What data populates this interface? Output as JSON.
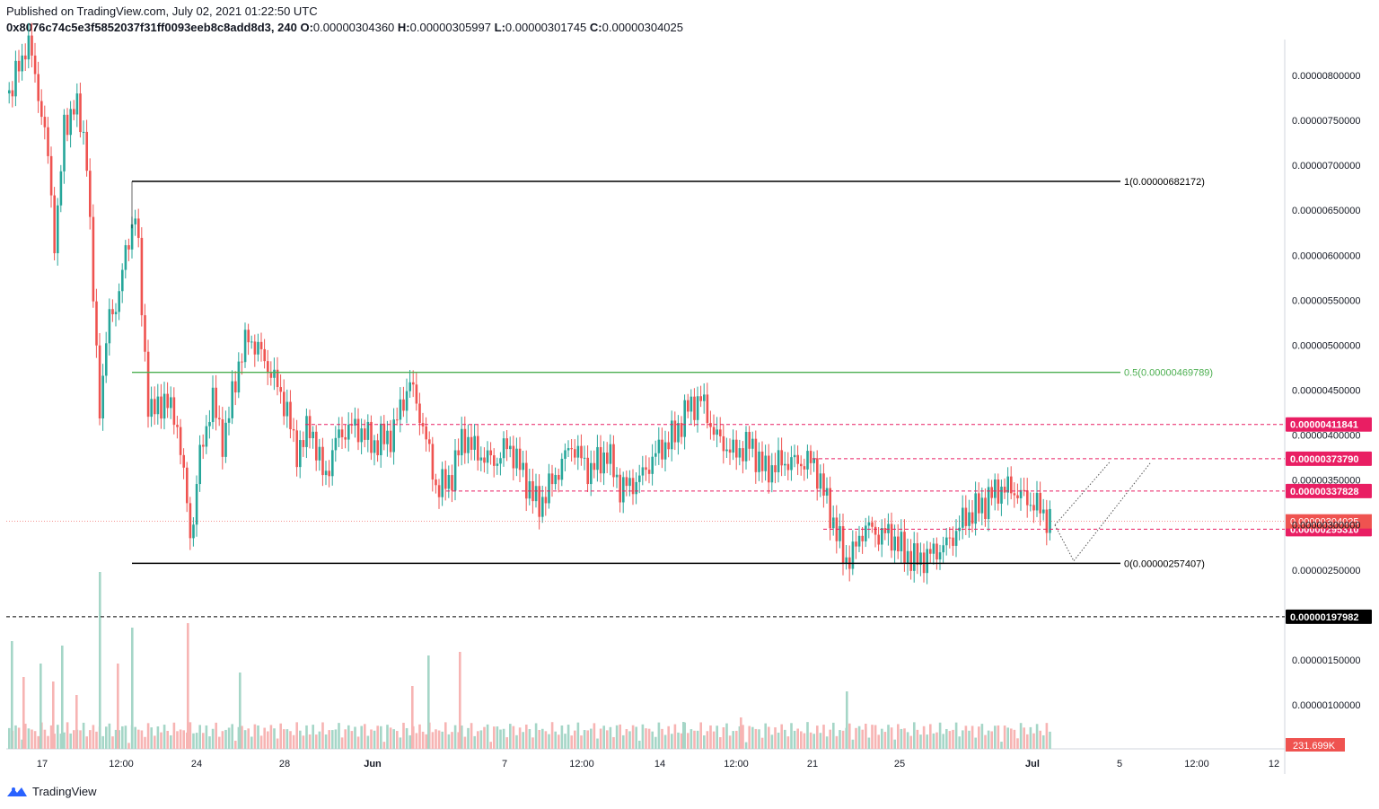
{
  "header": {
    "published": "Published on TradingView.com, July 02, 2021 01:22:50 UTC",
    "symbol": "0x8076c74c5e3f5852037f31ff0093eeb8c8add8d3, 240",
    "o_label": "O:",
    "o_value": "0.00000304360",
    "h_label": "H:",
    "h_value": "0.00000305997",
    "l_label": "L:",
    "l_value": "0.00000301745",
    "c_label": "C:",
    "c_value": "0.00000304025"
  },
  "footer": {
    "brand": "TradingView"
  },
  "colors": {
    "up": "#26a69a",
    "down": "#ef5350",
    "fib0": "#000000",
    "fib05": "#4caf50",
    "level": "#e91e63",
    "support": "#000000"
  },
  "chart_data": {
    "type": "candlestick",
    "price_axis": {
      "ticks": [
        "0.00000800000",
        "0.00000750000",
        "0.00000700000",
        "0.00000650000",
        "0.00000600000",
        "0.00000550000",
        "0.00000500000",
        "0.00000450000",
        "0.00000400000",
        "0.00000350000",
        "0.00000300000",
        "0.00000250000",
        "0.00000150000",
        "0.00000100000"
      ],
      "range": [
        9.2e-07,
        8.4e-06
      ]
    },
    "time_axis": {
      "ticks": [
        "17",
        "12:00",
        "24",
        "28",
        "Jun",
        "7",
        "12:00",
        "14",
        "12:00",
        "21",
        "25",
        "Jul",
        "5",
        "12:00",
        "12"
      ]
    },
    "fib_retracement": [
      {
        "label": "1(0.00000682172)",
        "value": 6.82172e-06
      },
      {
        "label": "0.5(0.00000469789)",
        "value": 4.69789e-06
      },
      {
        "label": "0(0.00000257407)",
        "value": 2.57407e-06
      }
    ],
    "horizontal_levels": [
      {
        "label": "0.00000411841",
        "value": 4.11841e-06,
        "style": "dashed"
      },
      {
        "label": "0.00000373790",
        "value": 3.7379e-06,
        "style": "dashed"
      },
      {
        "label": "0.00000337828",
        "value": 3.37828e-06,
        "style": "dashed"
      },
      {
        "label": "0.00000295310",
        "value": 2.9531e-06,
        "style": "dashed"
      },
      {
        "label": "0.00000197982",
        "value": 1.97982e-06,
        "style": "dashed-black"
      }
    ],
    "current_price": {
      "label": "0.00000304025",
      "value": 3.04025e-06
    },
    "volume_label": "231.699K",
    "projection": [
      {
        "x": 1175,
        "v": 3e-06
      },
      {
        "x": 1196,
        "v": 2.6e-06
      },
      {
        "x": 1282,
        "v": 3.7e-06
      }
    ],
    "projection2": [
      {
        "x": 1175,
        "v": 3e-06
      },
      {
        "x": 1236,
        "v": 3.7e-06
      }
    ],
    "price_path": [
      [
        10,
        7.8e-06
      ],
      [
        30,
        8.4e-06
      ],
      [
        45,
        7.6e-06
      ],
      [
        52,
        7.1e-06
      ],
      [
        60,
        6.1e-06
      ],
      [
        70,
        7.4e-06
      ],
      [
        82,
        7.7e-06
      ],
      [
        95,
        7.2e-06
      ],
      [
        102,
        5.6e-06
      ],
      [
        110,
        4.3e-06
      ],
      [
        120,
        5.3e-06
      ],
      [
        130,
        5.5e-06
      ],
      [
        140,
        6.1e-06
      ],
      [
        150,
        6.5e-06
      ],
      [
        158,
        5.2e-06
      ],
      [
        165,
        4.2e-06
      ],
      [
        180,
        4.4e-06
      ],
      [
        195,
        4.2e-06
      ],
      [
        205,
        3.4e-06
      ],
      [
        212,
        2.8e-06
      ],
      [
        220,
        3.7e-06
      ],
      [
        235,
        4.4e-06
      ],
      [
        248,
        3.9e-06
      ],
      [
        262,
        4.7e-06
      ],
      [
        275,
        5.1e-06
      ],
      [
        290,
        4.9e-06
      ],
      [
        305,
        4.6e-06
      ],
      [
        318,
        4.3e-06
      ],
      [
        328,
        3.8e-06
      ],
      [
        345,
        4.1e-06
      ],
      [
        360,
        3.5e-06
      ],
      [
        375,
        4e-06
      ],
      [
        395,
        4.1e-06
      ],
      [
        415,
        3.9e-06
      ],
      [
        435,
        4e-06
      ],
      [
        455,
        4.6e-06
      ],
      [
        470,
        4.1e-06
      ],
      [
        485,
        3.4e-06
      ],
      [
        500,
        3.5e-06
      ],
      [
        515,
        4e-06
      ],
      [
        530,
        3.8e-06
      ],
      [
        550,
        3.7e-06
      ],
      [
        565,
        3.9e-06
      ],
      [
        580,
        3.6e-06
      ],
      [
        598,
        3.2e-06
      ],
      [
        615,
        3.5e-06
      ],
      [
        635,
        3.9e-06
      ],
      [
        655,
        3.6e-06
      ],
      [
        675,
        3.8e-06
      ],
      [
        690,
        3.4e-06
      ],
      [
        710,
        3.5e-06
      ],
      [
        730,
        3.8e-06
      ],
      [
        750,
        4e-06
      ],
      [
        765,
        4.3e-06
      ],
      [
        780,
        4.4e-06
      ],
      [
        795,
        4e-06
      ],
      [
        815,
        3.8e-06
      ],
      [
        835,
        3.9e-06
      ],
      [
        850,
        3.6e-06
      ],
      [
        870,
        3.7e-06
      ],
      [
        890,
        3.7e-06
      ],
      [
        905,
        3.7e-06
      ],
      [
        915,
        3.4e-06
      ],
      [
        928,
        3e-06
      ],
      [
        940,
        2.6e-06
      ],
      [
        950,
        2.7e-06
      ],
      [
        962,
        3e-06
      ],
      [
        975,
        2.9e-06
      ],
      [
        990,
        2.9e-06
      ],
      [
        1005,
        2.7e-06
      ],
      [
        1020,
        2.6e-06
      ],
      [
        1040,
        2.7e-06
      ],
      [
        1055,
        2.8e-06
      ],
      [
        1075,
        3.1e-06
      ],
      [
        1090,
        3.2e-06
      ],
      [
        1110,
        3.4e-06
      ],
      [
        1125,
        3.4e-06
      ],
      [
        1140,
        3.3e-06
      ],
      [
        1155,
        3.2e-06
      ],
      [
        1172,
        3e-06
      ]
    ],
    "volume_spikes": [
      [
        12,
        120
      ],
      [
        25,
        80
      ],
      [
        44,
        95
      ],
      [
        58,
        75
      ],
      [
        68,
        115
      ],
      [
        84,
        60
      ],
      [
        110,
        197
      ],
      [
        130,
        95
      ],
      [
        146,
        135
      ],
      [
        208,
        140
      ],
      [
        266,
        85
      ],
      [
        458,
        70
      ],
      [
        476,
        104
      ],
      [
        511,
        108
      ],
      [
        760,
        30
      ],
      [
        824,
        35
      ],
      [
        942,
        64
      ],
      [
        963,
        28
      ]
    ]
  }
}
